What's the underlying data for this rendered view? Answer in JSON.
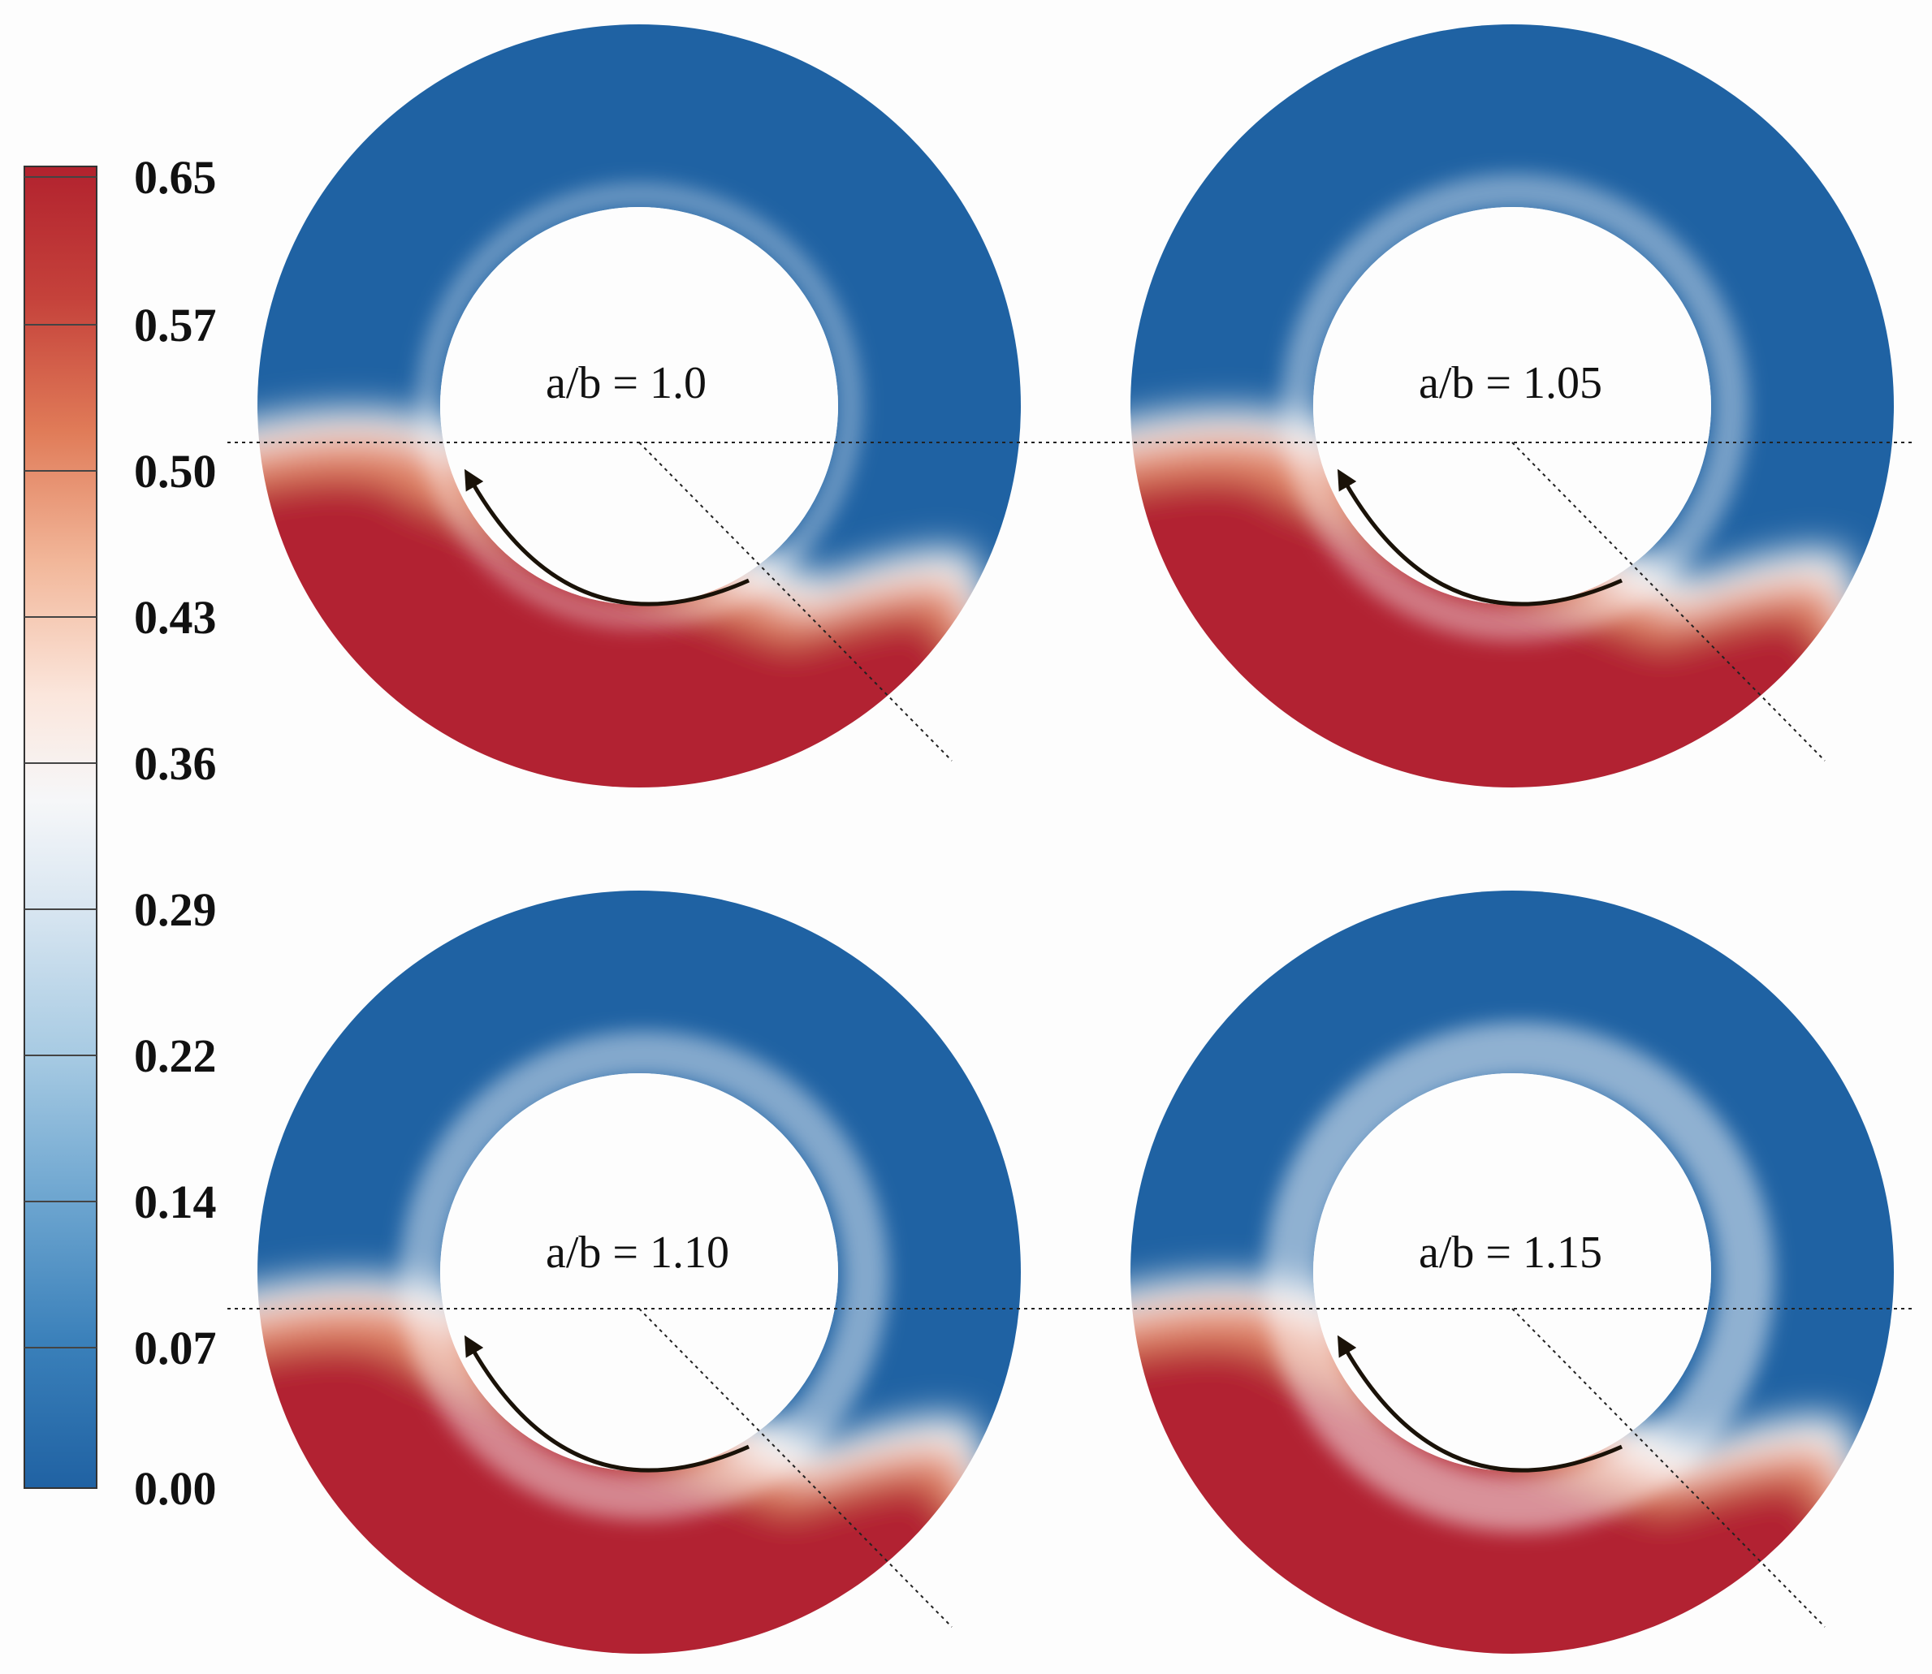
{
  "colorbar": {
    "ticks": [
      "0.65",
      "0.57",
      "0.50",
      "0.43",
      "0.36",
      "0.29",
      "0.22",
      "0.14",
      "0.07",
      "0.00"
    ],
    "colors": [
      "#b2222e",
      "#c5423b",
      "#e07b58",
      "#f2b79a",
      "#fbe6dc",
      "#f6f7f9",
      "#d9e6f1",
      "#a8cbe3",
      "#6ea6d0",
      "#3a80ba",
      "#2062a3"
    ]
  },
  "field_colors": {
    "high": "#b22333",
    "low": "#1f62a3",
    "mid": "#f7f5f3"
  },
  "panels": [
    {
      "label": "a/b = 1.0"
    },
    {
      "label": "a/b = 1.05"
    },
    {
      "label": "a/b = 1.10"
    },
    {
      "label": "a/b = 1.15"
    }
  ]
}
